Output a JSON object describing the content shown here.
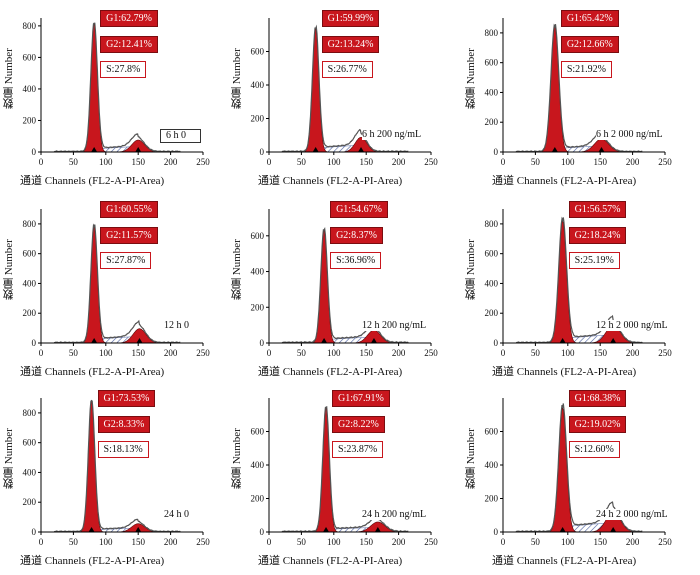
{
  "figure": {
    "ylabel_cn": "数量",
    "ylabel_en": "Number",
    "xlabel_cn": "通道",
    "xlabel_en": "Channels (FL2-A-PI-Area)",
    "colors": {
      "g1_fill": "#c8161d",
      "g2_fill": "#c8161d",
      "s_hatch": "#4a5fa0",
      "stat_box_fill": "#c8161d",
      "stat_box_border": "#c8161d",
      "histogram_line": "#555555"
    }
  },
  "chart_data": [
    {
      "type": "area",
      "condition": "6 h 0",
      "condition_boxed": true,
      "g1": "G1:62.79%",
      "g2": "G2:12.41%",
      "s": "S:27.8%",
      "xlim": [
        0,
        250
      ],
      "ylim": [
        0,
        850
      ],
      "yticks": [
        0,
        200,
        400,
        600,
        800
      ],
      "xticks": [
        0,
        50,
        100,
        150,
        200,
        250
      ],
      "g1_peak": {
        "x": 82,
        "y": 810
      },
      "g2_peak": {
        "x": 150,
        "y": 95
      },
      "g1_sigma": 5,
      "g2_sigma": 10
    },
    {
      "type": "area",
      "condition": "6 h 200 ng/mL",
      "condition_boxed": false,
      "g1": "G1:59.99%",
      "g2": "G2:13.24%",
      "s": "S:26.77%",
      "xlim": [
        0,
        250
      ],
      "ylim": [
        0,
        800
      ],
      "yticks": [
        0,
        200,
        400,
        600
      ],
      "xticks": [
        0,
        50,
        100,
        150,
        200,
        250
      ],
      "g1_peak": {
        "x": 72,
        "y": 735
      },
      "g2_peak": {
        "x": 142,
        "y": 110
      },
      "g1_sigma": 5,
      "g2_sigma": 9
    },
    {
      "type": "area",
      "condition": "6 h 2 000 ng/mL",
      "condition_boxed": false,
      "g1": "G1:65.42%",
      "g2": "G2:12.66%",
      "s": "S:21.92%",
      "xlim": [
        0,
        250
      ],
      "ylim": [
        0,
        900
      ],
      "yticks": [
        0,
        200,
        400,
        600,
        800
      ],
      "xticks": [
        0,
        50,
        100,
        150,
        200,
        250
      ],
      "g1_peak": {
        "x": 80,
        "y": 840
      },
      "g2_peak": {
        "x": 152,
        "y": 110
      },
      "g1_sigma": 6,
      "g2_sigma": 11
    },
    {
      "type": "area",
      "condition": "12 h 0",
      "condition_boxed": false,
      "g1": "G1:60.55%",
      "g2": "G2:11.57%",
      "s": "S:27.87%",
      "xlim": [
        0,
        250
      ],
      "ylim": [
        0,
        900
      ],
      "yticks": [
        0,
        200,
        400,
        600,
        800
      ],
      "xticks": [
        0,
        50,
        100,
        150,
        200,
        250
      ],
      "g1_peak": {
        "x": 82,
        "y": 780
      },
      "g2_peak": {
        "x": 152,
        "y": 120
      },
      "g1_sigma": 5,
      "g2_sigma": 10
    },
    {
      "type": "area",
      "condition": "12 h 200 ng/mL",
      "condition_boxed": false,
      "g1": "G1:54.67%",
      "g2": "G2:8.37%",
      "s": "S:36.96%",
      "xlim": [
        0,
        250
      ],
      "ylim": [
        0,
        750
      ],
      "yticks": [
        0,
        200,
        400,
        600
      ],
      "xticks": [
        0,
        50,
        100,
        150,
        200,
        250
      ],
      "g1_peak": {
        "x": 85,
        "y": 630
      },
      "g2_peak": {
        "x": 162,
        "y": 90
      },
      "g1_sigma": 5,
      "g2_sigma": 10
    },
    {
      "type": "area",
      "condition": "12 h 2 000 ng/mL",
      "condition_boxed": false,
      "g1": "G1:56.57%",
      "g2": "G2:18.24%",
      "s": "S:25.19%",
      "xlim": [
        0,
        250
      ],
      "ylim": [
        0,
        900
      ],
      "yticks": [
        0,
        200,
        400,
        600,
        800
      ],
      "xticks": [
        0,
        50,
        100,
        150,
        200,
        250
      ],
      "g1_peak": {
        "x": 92,
        "y": 820
      },
      "g2_peak": {
        "x": 170,
        "y": 150
      },
      "g1_sigma": 6,
      "g2_sigma": 11
    },
    {
      "type": "area",
      "condition": "24 h 0",
      "condition_boxed": false,
      "g1": "G1:73.53%",
      "g2": "G2:8.33%",
      "s": "S:18.13%",
      "xlim": [
        0,
        250
      ],
      "ylim": [
        0,
        900
      ],
      "yticks": [
        0,
        200,
        400,
        600,
        800
      ],
      "xticks": [
        0,
        50,
        100,
        150,
        200,
        250
      ],
      "g1_peak": {
        "x": 78,
        "y": 880
      },
      "g2_peak": {
        "x": 150,
        "y": 70
      },
      "g1_sigma": 5,
      "g2_sigma": 10
    },
    {
      "type": "area",
      "condition": "24 h 200 ng/mL",
      "condition_boxed": false,
      "g1": "G1:67.91%",
      "g2": "G2:8.22%",
      "s": "S:23.87%",
      "xlim": [
        0,
        250
      ],
      "ylim": [
        0,
        800
      ],
      "yticks": [
        0,
        200,
        400,
        600
      ],
      "xticks": [
        0,
        50,
        100,
        150,
        200,
        250
      ],
      "g1_peak": {
        "x": 88,
        "y": 740
      },
      "g2_peak": {
        "x": 168,
        "y": 75
      },
      "g1_sigma": 5,
      "g2_sigma": 11
    },
    {
      "type": "area",
      "condition": "24 h 2 000 ng/mL",
      "condition_boxed": false,
      "g1": "G1:68.38%",
      "g2": "G2:19.02%",
      "s": "S:12.60%",
      "xlim": [
        0,
        250
      ],
      "ylim": [
        0,
        800
      ],
      "yticks": [
        0,
        200,
        400,
        600
      ],
      "xticks": [
        0,
        50,
        100,
        150,
        200,
        250
      ],
      "g1_peak": {
        "x": 92,
        "y": 740
      },
      "g2_peak": {
        "x": 170,
        "y": 150
      },
      "g1_sigma": 6,
      "g2_sigma": 11
    }
  ]
}
